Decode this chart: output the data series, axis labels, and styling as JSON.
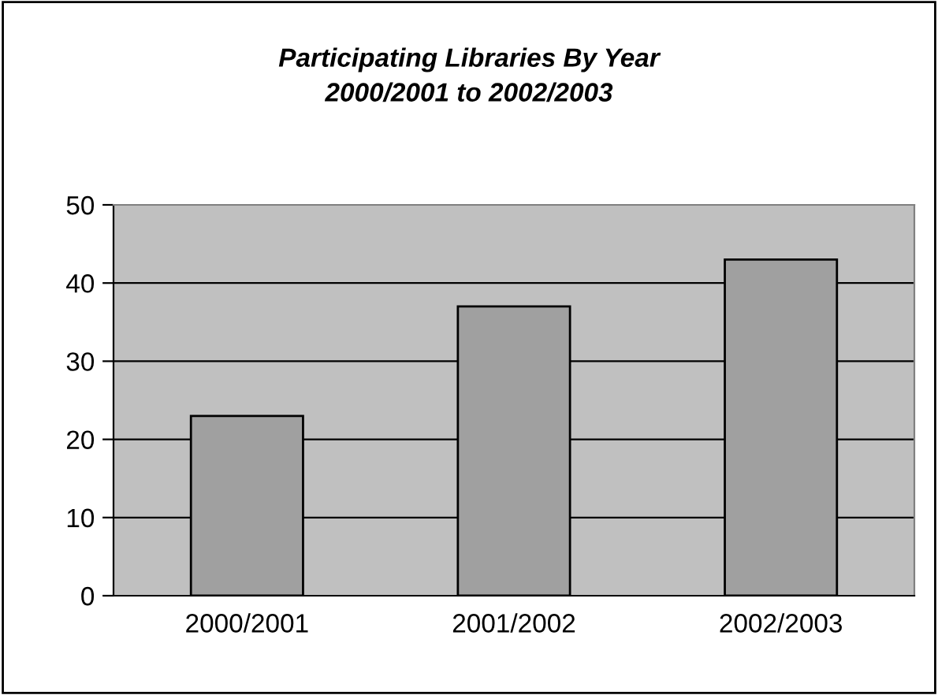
{
  "chart_data": {
    "type": "bar",
    "title": "Participating Libraries By Year",
    "subtitle": "2000/2001 to 2002/2003",
    "categories": [
      "2000/2001",
      "2001/2002",
      "2002/2003"
    ],
    "values": [
      23,
      37,
      43
    ],
    "color": "#a0a0a0",
    "ylim": [
      0,
      50
    ],
    "yticks": [
      0,
      10,
      20,
      30,
      40,
      50
    ],
    "grid": "y",
    "legend": false
  }
}
